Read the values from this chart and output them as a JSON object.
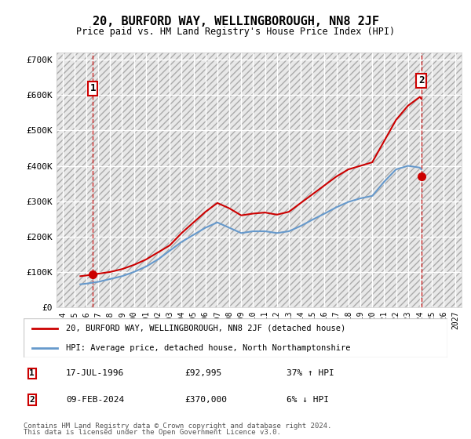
{
  "title": "20, BURFORD WAY, WELLINGBOROUGH, NN8 2JF",
  "subtitle": "Price paid vs. HM Land Registry's House Price Index (HPI)",
  "background_color": "#ffffff",
  "plot_bg_color": "#f0f0f0",
  "hatch_color": "#cccccc",
  "grid_color": "#ffffff",
  "red_line_color": "#cc0000",
  "blue_line_color": "#6699cc",
  "dashed_red_color": "#cc0000",
  "point1_x": 1996.54,
  "point1_y": 92995,
  "point2_x": 2024.11,
  "point2_y": 370000,
  "label1": "1",
  "label2": "2",
  "legend_entry1": "20, BURFORD WAY, WELLINGBOROUGH, NN8 2JF (detached house)",
  "legend_entry2": "HPI: Average price, detached house, North Northamptonshire",
  "table_row1": [
    "1",
    "17-JUL-1996",
    "£92,995",
    "37% ↑ HPI"
  ],
  "table_row2": [
    "2",
    "09-FEB-2024",
    "£370,000",
    "6% ↓ HPI"
  ],
  "footer1": "Contains HM Land Registry data © Crown copyright and database right 2024.",
  "footer2": "This data is licensed under the Open Government Licence v3.0.",
  "ylim": [
    0,
    720000
  ],
  "xlim": [
    1993.5,
    2027.5
  ],
  "yticks": [
    0,
    100000,
    200000,
    300000,
    400000,
    500000,
    600000,
    700000
  ],
  "ytick_labels": [
    "£0",
    "£100K",
    "£200K",
    "£300K",
    "£400K",
    "£500K",
    "£600K",
    "£700K"
  ],
  "xticks": [
    1994,
    1995,
    1996,
    1997,
    1998,
    1999,
    2000,
    2001,
    2002,
    2003,
    2004,
    2005,
    2006,
    2007,
    2008,
    2009,
    2010,
    2011,
    2012,
    2013,
    2014,
    2015,
    2016,
    2017,
    2018,
    2019,
    2020,
    2021,
    2022,
    2023,
    2024,
    2025,
    2026,
    2027
  ],
  "red_line_x": [
    1995.5,
    1996.0,
    1996.54,
    1997.0,
    1998.0,
    1999.0,
    2000.0,
    2001.0,
    2002.0,
    2003.0,
    2004.0,
    2005.0,
    2006.0,
    2007.0,
    2008.0,
    2009.0,
    2010.0,
    2011.0,
    2012.0,
    2013.0,
    2014.0,
    2015.0,
    2016.0,
    2017.0,
    2018.0,
    2019.0,
    2020.0,
    2021.0,
    2022.0,
    2023.0,
    2024.0,
    2024.11
  ],
  "red_line_y": [
    88000,
    90000,
    92995,
    95000,
    100000,
    108000,
    120000,
    135000,
    155000,
    175000,
    210000,
    240000,
    270000,
    295000,
    280000,
    260000,
    265000,
    268000,
    262000,
    270000,
    295000,
    320000,
    345000,
    370000,
    390000,
    400000,
    410000,
    470000,
    530000,
    570000,
    595000,
    590000
  ],
  "blue_line_x": [
    1995.5,
    1996.0,
    1997.0,
    1998.0,
    1999.0,
    2000.0,
    2001.0,
    2002.0,
    2003.0,
    2004.0,
    2005.0,
    2006.0,
    2007.0,
    2008.0,
    2009.0,
    2010.0,
    2011.0,
    2012.0,
    2013.0,
    2014.0,
    2015.0,
    2016.0,
    2017.0,
    2018.0,
    2019.0,
    2020.0,
    2021.0,
    2022.0,
    2023.0,
    2024.0,
    2024.11
  ],
  "blue_line_y": [
    65000,
    67000,
    72000,
    80000,
    88000,
    100000,
    115000,
    135000,
    160000,
    185000,
    205000,
    225000,
    240000,
    225000,
    210000,
    215000,
    215000,
    210000,
    215000,
    230000,
    248000,
    265000,
    283000,
    298000,
    308000,
    315000,
    355000,
    390000,
    400000,
    395000,
    390000
  ]
}
